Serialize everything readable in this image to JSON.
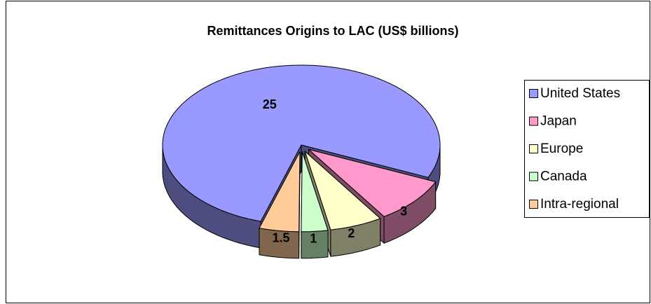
{
  "chart_data": {
    "type": "pie3d",
    "title": "Remittances Origins to LAC (US$ billions)",
    "categories": [
      "United States",
      "Japan",
      "Europe",
      "Canada",
      "Intra-regional"
    ],
    "values": [
      25,
      3,
      2,
      1,
      1.5
    ],
    "colors": [
      "#9999ff",
      "#ff99cc",
      "#ffffcc",
      "#ccffcc",
      "#ffcc99"
    ],
    "legend": "right"
  }
}
